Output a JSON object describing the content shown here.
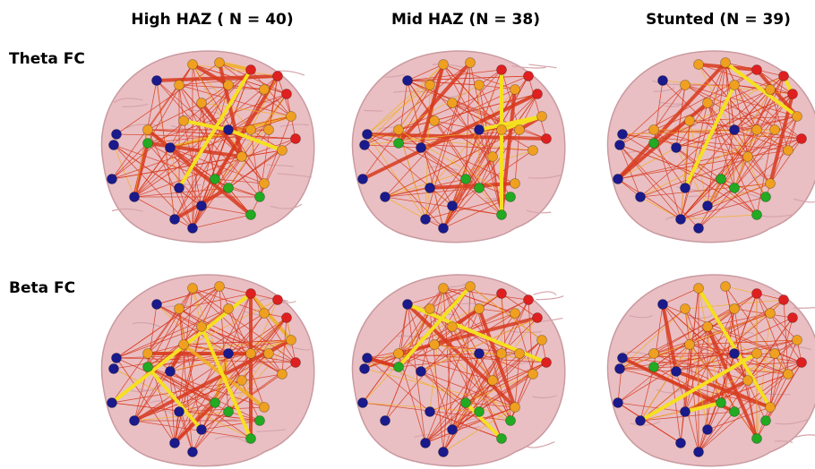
{
  "columns": [
    "High HAZ ( N = 40)",
    "Mid HAZ (N = 38)",
    "Stunted (N = 39)"
  ],
  "rows": [
    "Theta FC",
    "Beta FC"
  ]
}
